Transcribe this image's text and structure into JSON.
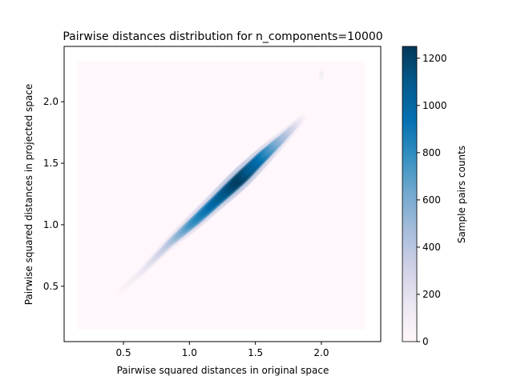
{
  "chart_data": {
    "type": "heatmap",
    "title": "Pairwise distances distribution for n_components=10000",
    "xlabel": "Pairwise squared distances in original space",
    "ylabel": "Pairwise squared distances in projected space",
    "xlim": [
      0.05,
      2.45
    ],
    "ylim": [
      0.05,
      2.45
    ],
    "xticks": [
      "0.5",
      "1.0",
      "1.5",
      "2.0"
    ],
    "xtick_values": [
      0.5,
      1.0,
      1.5,
      2.0
    ],
    "yticks": [
      "0.5",
      "1.0",
      "1.5",
      "2.0"
    ],
    "ytick_values": [
      0.5,
      1.0,
      1.5,
      2.0
    ],
    "hexbin_extent": {
      "x": [
        0.15,
        2.33
      ],
      "y": [
        0.15,
        2.33
      ]
    },
    "density_ridge": {
      "description_points": [
        {
          "x": 0.45,
          "y": 0.44,
          "count": 30
        },
        {
          "x": 0.65,
          "y": 0.63,
          "count": 180
        },
        {
          "x": 0.85,
          "y": 0.85,
          "count": 420
        },
        {
          "x": 1.05,
          "y": 1.04,
          "count": 800
        },
        {
          "x": 1.25,
          "y": 1.24,
          "count": 1050
        },
        {
          "x": 1.4,
          "y": 1.39,
          "count": 1230
        },
        {
          "x": 1.55,
          "y": 1.55,
          "count": 950
        },
        {
          "x": 1.7,
          "y": 1.7,
          "count": 520
        },
        {
          "x": 1.85,
          "y": 1.86,
          "count": 120
        },
        {
          "x": 2.0,
          "y": 2.22,
          "count": 40
        }
      ],
      "ridge_color_stops": [
        "#fff7fb",
        "#ece7f2",
        "#d0d1e6",
        "#a6bddb",
        "#74a9cf",
        "#3690c0",
        "#0570b0",
        "#045a8d",
        "#023858"
      ]
    },
    "colorbar": {
      "label": "Sample pairs counts",
      "range": [
        0,
        1250
      ],
      "ticks": [
        "0",
        "200",
        "400",
        "600",
        "800",
        "1000",
        "1200"
      ],
      "tick_values": [
        0,
        200,
        400,
        600,
        800,
        1000,
        1200
      ],
      "colormap": "PuBu",
      "colors": [
        "#fff7fb",
        "#ece7f2",
        "#d0d1e6",
        "#a6bddb",
        "#74a9cf",
        "#3690c0",
        "#0570b0",
        "#045a8d",
        "#023858"
      ]
    },
    "grid": false
  }
}
